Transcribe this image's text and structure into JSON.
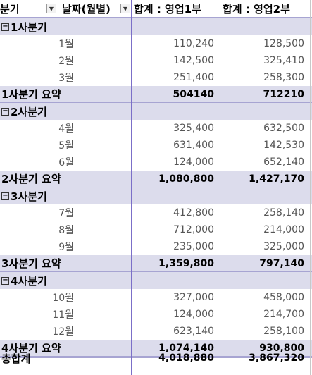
{
  "header": {
    "col1_label": "분기",
    "col2_label": "날짜(월별)",
    "col3_label": "합계 : 영업1부",
    "col4_label": "합계 : 영업2부"
  },
  "quarters": [
    {
      "name": "1사분기",
      "months": [
        {
          "label": "1월",
          "v1": "110,240",
          "v2": "128,500"
        },
        {
          "label": "2월",
          "v1": "142,500",
          "v2": "325,410"
        },
        {
          "label": "3월",
          "v1": "251,400",
          "v2": "258,300"
        }
      ],
      "subtotal_label": "1사분기 요약",
      "subtotal_v1": "504140",
      "subtotal_v2": "712210"
    },
    {
      "name": "2사분기",
      "months": [
        {
          "label": "4월",
          "v1": "325,400",
          "v2": "632,500"
        },
        {
          "label": "5월",
          "v1": "631,400",
          "v2": "142,530"
        },
        {
          "label": "6월",
          "v1": "124,000",
          "v2": "652,140"
        }
      ],
      "subtotal_label": "2사분기 요약",
      "subtotal_v1": "1,080,800",
      "subtotal_v2": "1,427,170"
    },
    {
      "name": "3사분기",
      "months": [
        {
          "label": "7월",
          "v1": "412,800",
          "v2": "258,140"
        },
        {
          "label": "8월",
          "v1": "712,000",
          "v2": "214,000"
        },
        {
          "label": "9월",
          "v1": "235,000",
          "v2": "325,000"
        }
      ],
      "subtotal_label": "3사분기 요약",
      "subtotal_v1": "1,359,800",
      "subtotal_v2": "797,140"
    },
    {
      "name": "4사분기",
      "months": [
        {
          "label": "10월",
          "v1": "327,000",
          "v2": "458,000"
        },
        {
          "label": "11월",
          "v1": "124,000",
          "v2": "214,700"
        },
        {
          "label": "12월",
          "v1": "623,140",
          "v2": "258,100"
        }
      ],
      "subtotal_label": "4사분기 요약",
      "subtotal_v1": "1,074,140",
      "subtotal_v2": "930,800"
    }
  ],
  "grand_total": {
    "label": "총합계",
    "v1": "4,018,880",
    "v2": "3,867,320"
  },
  "icons": {
    "collapse": "minus-box-icon",
    "filter": "filter-dropdown-icon"
  }
}
